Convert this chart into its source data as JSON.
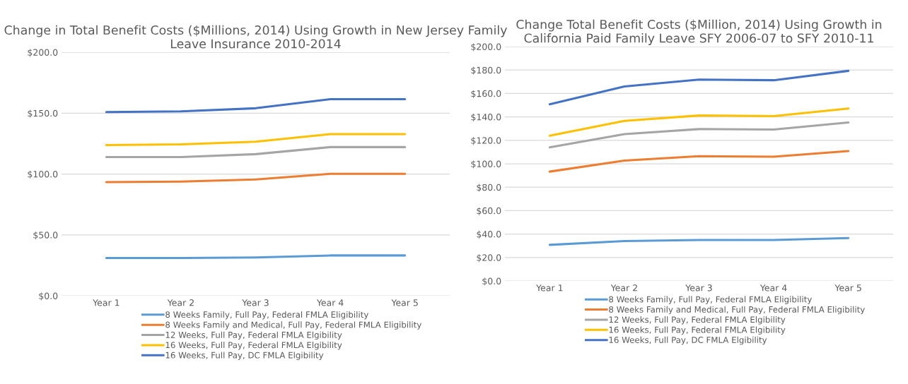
{
  "chart_data": [
    {
      "type": "line",
      "title": "Change in Total Benefit Costs ($Millions, 2014) Using Growth in New Jersey Family Leave Insurance 2010-2014",
      "categories": [
        "Year 1",
        "Year 2",
        "Year 3",
        "Year 4",
        "Year 5"
      ],
      "ylim": [
        0,
        200
      ],
      "yticks": [
        {
          "value": 0,
          "label": "$0.0"
        },
        {
          "value": 50,
          "label": "$50.0"
        },
        {
          "value": 100,
          "label": "$100.0"
        },
        {
          "value": 150,
          "label": "$150.0"
        },
        {
          "value": 200,
          "label": "$200.0"
        }
      ],
      "grid": "y",
      "legend": "bottom",
      "marker": "none",
      "line_style": "solid",
      "series": [
        {
          "name": "8 Weeks Family, Full Pay, Federal FMLA Eligibility",
          "color": "#5b9bd5",
          "values": [
            31.0,
            31.0,
            31.4,
            33.1,
            33.1
          ]
        },
        {
          "name": "8 Weeks Family and Medical, Full Pay, Federal FMLA Eligibility",
          "color": "#ed7d31",
          "values": [
            93.3,
            93.8,
            95.5,
            100.1,
            100.1
          ]
        },
        {
          "name": "12 Weeks, Full Pay, Federal FMLA Elgibility",
          "color": "#a5a5a5",
          "values": [
            113.9,
            113.9,
            116.3,
            122.1,
            122.1
          ]
        },
        {
          "name": "16 Weeks, Full Pay, Federal FMLA Elgibility",
          "color": "#ffc000",
          "values": [
            123.8,
            124.3,
            126.5,
            132.8,
            132.8
          ]
        },
        {
          "name": "16 Weeks, Full Pay, DC FMLA Elgibility",
          "color": "#4472c4",
          "values": [
            150.9,
            151.4,
            154.0,
            161.5,
            161.5
          ]
        }
      ]
    },
    {
      "type": "line",
      "title": "Change Total Benefit Costs ($Million, 2014) Using Growth in California Paid Family Leave SFY 2006-07 to SFY 2010-11",
      "categories": [
        "Year 1",
        "Year 2",
        "Year 3",
        "Year 4",
        "Year 5"
      ],
      "ylim": [
        0,
        200
      ],
      "yticks": [
        {
          "value": 0,
          "label": "$0.0"
        },
        {
          "value": 20,
          "label": "$20.0"
        },
        {
          "value": 40,
          "label": "$40.0"
        },
        {
          "value": 60,
          "label": "$60.0"
        },
        {
          "value": 80,
          "label": "$80.0"
        },
        {
          "value": 100,
          "label": "$100.0"
        },
        {
          "value": 120,
          "label": "$120.0"
        },
        {
          "value": 140,
          "label": "$140.0"
        },
        {
          "value": 160,
          "label": "$160.0"
        },
        {
          "value": 180,
          "label": "$180.0"
        },
        {
          "value": 200,
          "label": "$200.0"
        }
      ],
      "grid": "y",
      "legend": "bottom",
      "marker": "none",
      "line_style": "solid",
      "series": [
        {
          "name": "8 Weeks Family, Full Pay, Federal FMLA Eligibility",
          "color": "#5b9bd5",
          "values": [
            30.8,
            34.0,
            34.9,
            34.9,
            36.6
          ]
        },
        {
          "name": "8 Weeks Family and Medical, Full Pay, Federal FMLA Eligibility",
          "color": "#ed7d31",
          "values": [
            93.3,
            102.7,
            106.5,
            106.0,
            110.8
          ]
        },
        {
          "name": "12 Weeks, Full Pay, Federal FMLA Elgibility",
          "color": "#a5a5a5",
          "values": [
            114.0,
            125.3,
            129.6,
            129.2,
            135.2
          ]
        },
        {
          "name": "16 Weeks, Full Pay, Federal FMLA Elgibility",
          "color": "#ffc000",
          "values": [
            123.9,
            136.6,
            141.2,
            140.7,
            147.2
          ]
        },
        {
          "name": "16 Weeks, Full Pay, DC FMLA Elgibility",
          "color": "#4472c4",
          "values": [
            150.8,
            166.0,
            171.8,
            171.3,
            179.3
          ]
        }
      ]
    }
  ]
}
